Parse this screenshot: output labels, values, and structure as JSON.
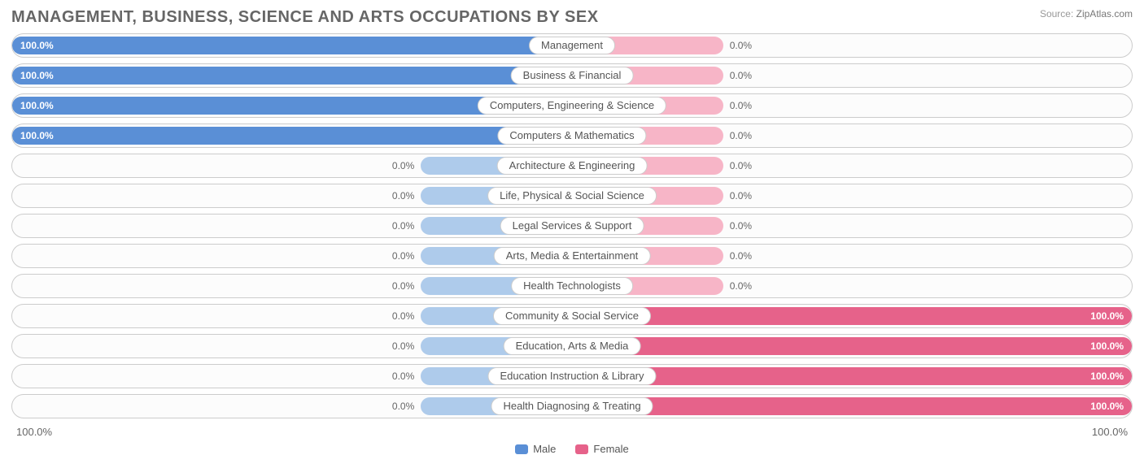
{
  "title": "MANAGEMENT, BUSINESS, SCIENCE AND ARTS OCCUPATIONS BY SEX",
  "source_label": "Source:",
  "source_site": "ZipAtlas.com",
  "chart": {
    "type": "diverging-bar",
    "male_track_color": "#aecbeb",
    "male_fill_color": "#5a8fd6",
    "female_track_color": "#f7b5c7",
    "female_fill_color": "#e6628a",
    "row_border_color": "#cccccc",
    "background_color": "#ffffff",
    "text_color": "#666666",
    "min_track_pct_width": 27,
    "axis": {
      "left": "100.0%",
      "right": "100.0%"
    },
    "legend": [
      {
        "label": "Male",
        "color": "#5a8fd6"
      },
      {
        "label": "Female",
        "color": "#e6628a"
      }
    ],
    "rows": [
      {
        "category": "Management",
        "male": 100.0,
        "female": 0.0
      },
      {
        "category": "Business & Financial",
        "male": 100.0,
        "female": 0.0
      },
      {
        "category": "Computers, Engineering & Science",
        "male": 100.0,
        "female": 0.0
      },
      {
        "category": "Computers & Mathematics",
        "male": 100.0,
        "female": 0.0
      },
      {
        "category": "Architecture & Engineering",
        "male": 0.0,
        "female": 0.0
      },
      {
        "category": "Life, Physical & Social Science",
        "male": 0.0,
        "female": 0.0
      },
      {
        "category": "Legal Services & Support",
        "male": 0.0,
        "female": 0.0
      },
      {
        "category": "Arts, Media & Entertainment",
        "male": 0.0,
        "female": 0.0
      },
      {
        "category": "Health Technologists",
        "male": 0.0,
        "female": 0.0
      },
      {
        "category": "Community & Social Service",
        "male": 0.0,
        "female": 100.0
      },
      {
        "category": "Education, Arts & Media",
        "male": 0.0,
        "female": 100.0
      },
      {
        "category": "Education Instruction & Library",
        "male": 0.0,
        "female": 100.0
      },
      {
        "category": "Health Diagnosing & Treating",
        "male": 0.0,
        "female": 100.0
      }
    ]
  }
}
